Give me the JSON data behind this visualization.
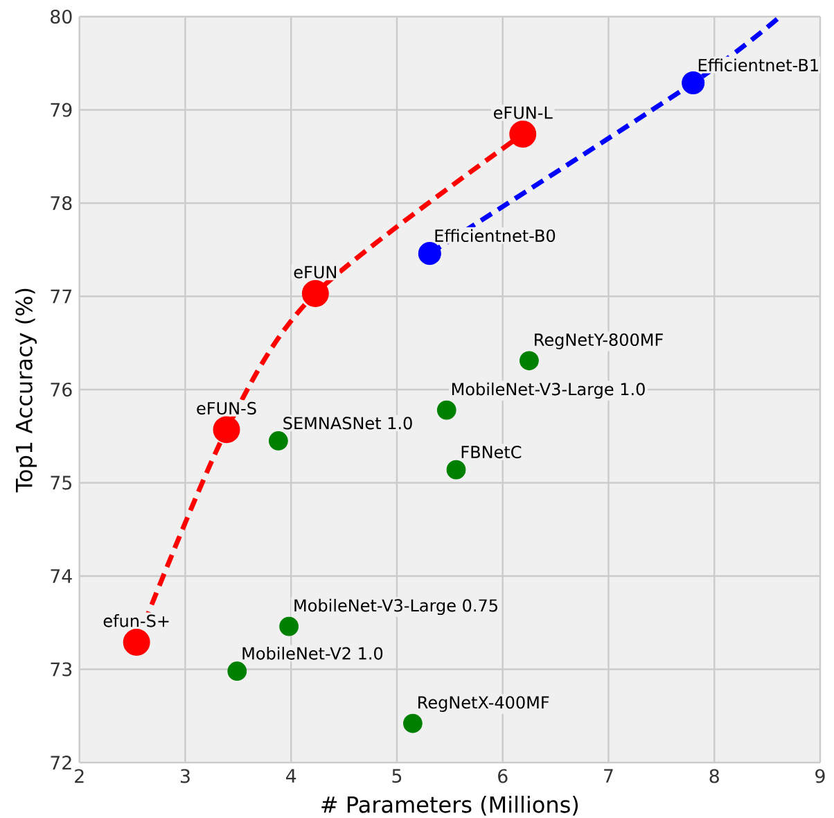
{
  "chart_data": {
    "type": "scatter",
    "xlabel": "# Parameters (Millions)",
    "ylabel": "Top1 Accuracy (%)",
    "xlim": [
      2,
      9
    ],
    "ylim": [
      72,
      80
    ],
    "xticks": [
      2,
      3,
      4,
      5,
      6,
      7,
      8,
      9
    ],
    "yticks": [
      72,
      73,
      74,
      75,
      76,
      77,
      78,
      79,
      80
    ],
    "grid": true,
    "series": [
      {
        "type": "line",
        "color": "#ff0000",
        "marker": "circle",
        "line_style": "dashed",
        "x": [
          2.54,
          3.39,
          4.23,
          6.19
        ],
        "values": [
          73.29,
          75.57,
          77.03,
          78.74
        ]
      },
      {
        "type": "line",
        "color": "#0000ff",
        "marker": "none",
        "line_style": "dashed",
        "x": [
          5.31,
          7.8,
          8.62
        ],
        "values": [
          77.46,
          79.29,
          80.0
        ]
      },
      {
        "color": "#0000ff",
        "marker": "circle",
        "x": [
          5.31,
          7.8
        ],
        "values": [
          77.46,
          79.29
        ]
      },
      {
        "color": "#008000",
        "marker": "circle",
        "x": [
          3.88,
          5.47,
          5.56,
          6.25,
          3.98,
          3.49,
          5.15
        ],
        "values": [
          75.45,
          75.78,
          75.14,
          76.31,
          73.46,
          72.98,
          72.42
        ]
      }
    ],
    "annotations": [
      {
        "text": "efun-S+",
        "x": 2.54,
        "y": 73.29
      },
      {
        "text": "eFUN-S",
        "x": 3.39,
        "y": 75.57
      },
      {
        "text": "eFUN",
        "x": 4.23,
        "y": 77.03
      },
      {
        "text": "eFUN-L",
        "x": 6.19,
        "y": 78.74
      },
      {
        "text": "Efficientnet-B0",
        "x": 5.31,
        "y": 77.46
      },
      {
        "text": "Efficientnet-B1",
        "x": 7.8,
        "y": 79.29
      },
      {
        "text": "SEMNASNet 1.0",
        "x": 3.88,
        "y": 75.45
      },
      {
        "text": "MobileNet-V3-Large 1.0",
        "x": 5.47,
        "y": 75.78
      },
      {
        "text": "FBNetC",
        "x": 5.56,
        "y": 75.14
      },
      {
        "text": "RegNetY-800MF",
        "x": 6.25,
        "y": 76.31
      },
      {
        "text": "MobileNet-V3-Large 0.75",
        "x": 3.98,
        "y": 73.46
      },
      {
        "text": "MobileNet-V2 1.0",
        "x": 3.49,
        "y": 72.98
      },
      {
        "text": "RegNetX-400MF",
        "x": 5.15,
        "y": 72.42
      }
    ]
  }
}
